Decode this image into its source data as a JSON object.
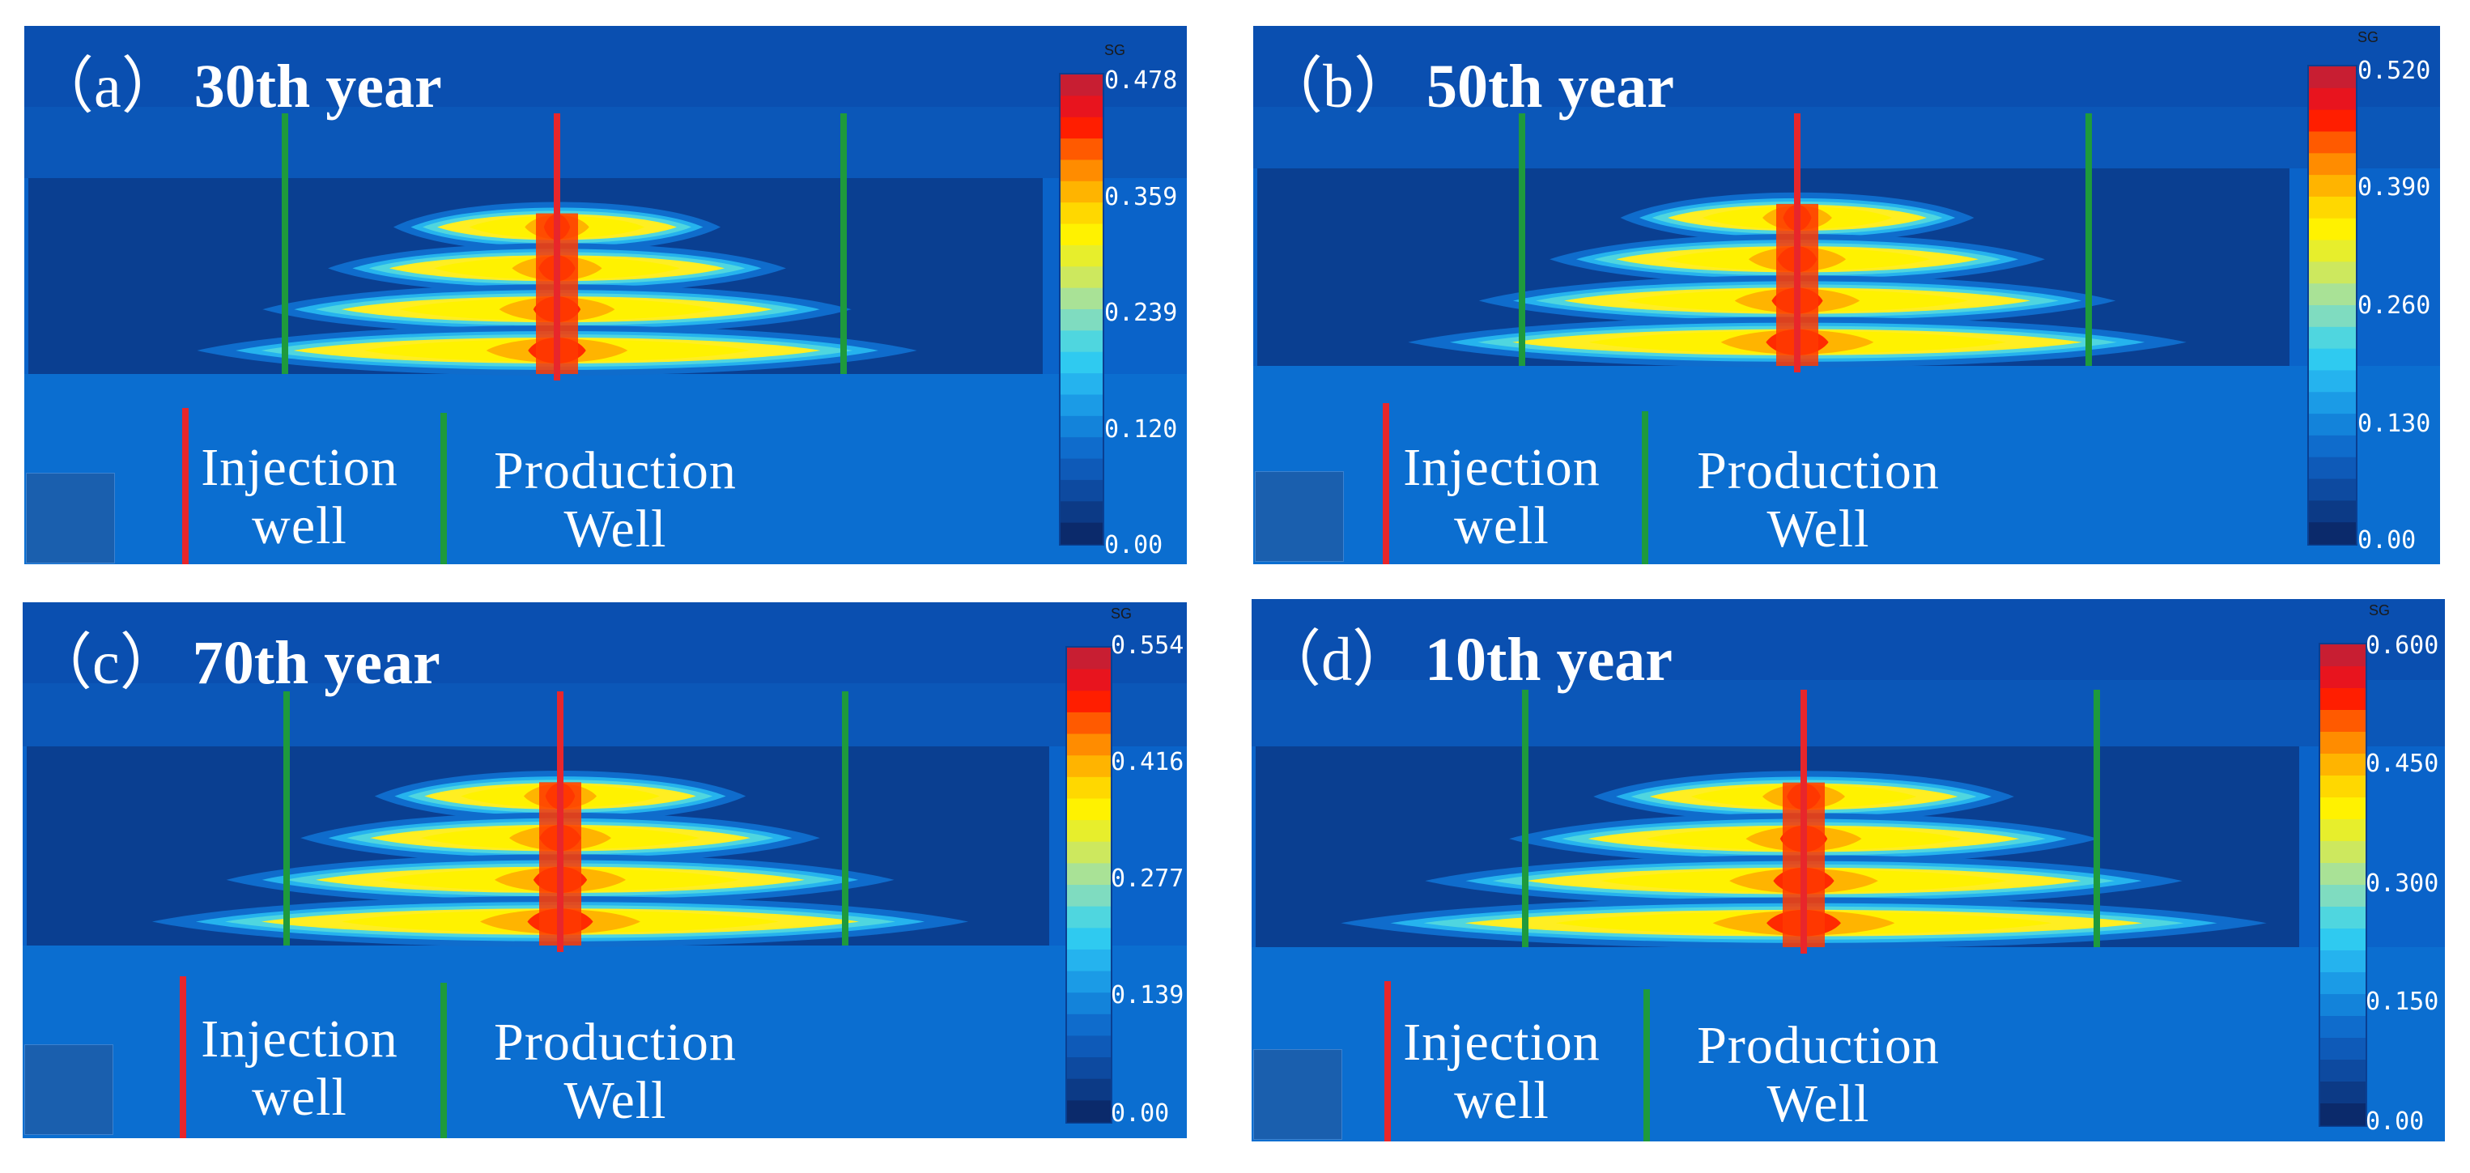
{
  "figure": {
    "colormap": [
      "#0b2a6b",
      "#0c3a86",
      "#0d4aa0",
      "#0e5ab8",
      "#0f6ccc",
      "#1383da",
      "#1b9be6",
      "#25b3ee",
      "#2fcaf0",
      "#4fd6df",
      "#7fdcc0",
      "#a9e296",
      "#cde85e",
      "#e7ee2c",
      "#fff200",
      "#ffd800",
      "#ffb400",
      "#ff8c00",
      "#ff5a00",
      "#ff1e00",
      "#e8141e",
      "#c81e32"
    ],
    "injection_color": "#e8262b",
    "production_color": "#1e9a3c",
    "panels": [
      {
        "title": "（a）30th  year",
        "label_letter": "（a）",
        "label_year": "30th  year",
        "colorbar_title": "SG",
        "ticks": [
          "0.478",
          "0.359",
          "0.239",
          "0.120",
          "0.00"
        ],
        "max_value": 0.478,
        "legend": {
          "injection": [
            "Injection",
            "well"
          ],
          "production": [
            "Production",
            "Well"
          ]
        }
      },
      {
        "title": "（b）50th year",
        "label_letter": "（b）",
        "label_year": "50th year",
        "colorbar_title": "SG",
        "ticks": [
          "0.520",
          "0.390",
          "0.260",
          "0.130",
          "0.00"
        ],
        "max_value": 0.52,
        "legend": {
          "injection": [
            "Injection",
            "well"
          ],
          "production": [
            "Production",
            "Well"
          ]
        }
      },
      {
        "title": "（c）70th year",
        "label_letter": "（c）",
        "label_year": "70th year",
        "colorbar_title": "SG",
        "ticks": [
          "0.554",
          "0.416",
          "0.277",
          "0.139",
          "0.00"
        ],
        "max_value": 0.554,
        "legend": {
          "injection": [
            "Injection",
            "well"
          ],
          "production": [
            "Production",
            "Well"
          ]
        }
      },
      {
        "title": "（d）10th year",
        "label_letter": "（d）",
        "label_year": "10th year",
        "colorbar_title": "SG",
        "ticks": [
          "0.600",
          "0.450",
          "0.300",
          "0.150",
          "0.00"
        ],
        "max_value": 0.6,
        "legend": {
          "injection": [
            "Injection",
            "well"
          ],
          "production": [
            "Production",
            "Well"
          ]
        }
      }
    ]
  }
}
